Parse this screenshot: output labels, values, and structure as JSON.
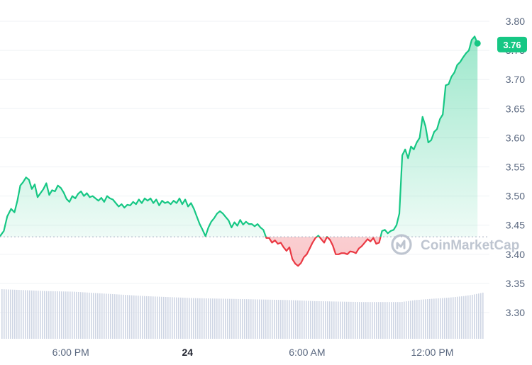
{
  "chart_data": {
    "type": "line",
    "title": "",
    "xlabel": "",
    "ylabel": "",
    "ylim": [
      3.25,
      3.82
    ],
    "grid": true,
    "baseline": 3.43,
    "current_price": 3.76,
    "current_price_label": "3.76",
    "y_ticks": [
      {
        "value": 3.8,
        "label": "3.80"
      },
      {
        "value": 3.75,
        "label": "3.75"
      },
      {
        "value": 3.7,
        "label": "3.70"
      },
      {
        "value": 3.65,
        "label": "3.65"
      },
      {
        "value": 3.6,
        "label": "3.60"
      },
      {
        "value": 3.55,
        "label": "3.55"
      },
      {
        "value": 3.5,
        "label": "3.50"
      },
      {
        "value": 3.45,
        "label": "3.45"
      },
      {
        "value": 3.4,
        "label": "3.40"
      },
      {
        "value": 3.35,
        "label": "3.35"
      },
      {
        "value": 3.3,
        "label": "3.30"
      }
    ],
    "x_ticks": [
      {
        "label": "6:00 PM",
        "t": 0.1467,
        "bold": false
      },
      {
        "label": "24",
        "t": 0.3887,
        "bold": true
      },
      {
        "label": "6:00 AM",
        "t": 0.6366,
        "bold": false
      },
      {
        "label": "12:00 PM",
        "t": 0.8962,
        "bold": false
      }
    ],
    "series": [
      {
        "points": [
          [
            0.0,
            3.431
          ],
          [
            0.008,
            3.44
          ],
          [
            0.015,
            3.465
          ],
          [
            0.023,
            3.478
          ],
          [
            0.03,
            3.472
          ],
          [
            0.036,
            3.492
          ],
          [
            0.042,
            3.518
          ],
          [
            0.048,
            3.524
          ],
          [
            0.054,
            3.532
          ],
          [
            0.06,
            3.528
          ],
          [
            0.066,
            3.512
          ],
          [
            0.072,
            3.52
          ],
          [
            0.078,
            3.498
          ],
          [
            0.084,
            3.505
          ],
          [
            0.09,
            3.512
          ],
          [
            0.096,
            3.522
          ],
          [
            0.102,
            3.502
          ],
          [
            0.108,
            3.51
          ],
          [
            0.114,
            3.508
          ],
          [
            0.12,
            3.518
          ],
          [
            0.126,
            3.514
          ],
          [
            0.132,
            3.506
          ],
          [
            0.138,
            3.495
          ],
          [
            0.144,
            3.49
          ],
          [
            0.15,
            3.5
          ],
          [
            0.156,
            3.496
          ],
          [
            0.162,
            3.504
          ],
          [
            0.168,
            3.508
          ],
          [
            0.174,
            3.5
          ],
          [
            0.18,
            3.505
          ],
          [
            0.186,
            3.498
          ],
          [
            0.192,
            3.5
          ],
          [
            0.198,
            3.496
          ],
          [
            0.204,
            3.492
          ],
          [
            0.21,
            3.497
          ],
          [
            0.216,
            3.49
          ],
          [
            0.222,
            3.5
          ],
          [
            0.228,
            3.496
          ],
          [
            0.234,
            3.494
          ],
          [
            0.24,
            3.488
          ],
          [
            0.246,
            3.482
          ],
          [
            0.252,
            3.486
          ],
          [
            0.258,
            3.48
          ],
          [
            0.264,
            3.485
          ],
          [
            0.27,
            3.484
          ],
          [
            0.276,
            3.49
          ],
          [
            0.282,
            3.486
          ],
          [
            0.288,
            3.494
          ],
          [
            0.294,
            3.488
          ],
          [
            0.3,
            3.496
          ],
          [
            0.306,
            3.492
          ],
          [
            0.312,
            3.496
          ],
          [
            0.318,
            3.488
          ],
          [
            0.324,
            3.494
          ],
          [
            0.33,
            3.484
          ],
          [
            0.336,
            3.492
          ],
          [
            0.342,
            3.488
          ],
          [
            0.348,
            3.49
          ],
          [
            0.354,
            3.486
          ],
          [
            0.36,
            3.492
          ],
          [
            0.366,
            3.488
          ],
          [
            0.372,
            3.496
          ],
          [
            0.378,
            3.486
          ],
          [
            0.384,
            3.494
          ],
          [
            0.39,
            3.482
          ],
          [
            0.396,
            3.488
          ],
          [
            0.402,
            3.478
          ],
          [
            0.408,
            3.465
          ],
          [
            0.414,
            3.452
          ],
          [
            0.42,
            3.442
          ],
          [
            0.426,
            3.431
          ],
          [
            0.432,
            3.446
          ],
          [
            0.438,
            3.456
          ],
          [
            0.444,
            3.462
          ],
          [
            0.45,
            3.47
          ],
          [
            0.456,
            3.474
          ],
          [
            0.462,
            3.47
          ],
          [
            0.468,
            3.464
          ],
          [
            0.474,
            3.458
          ],
          [
            0.48,
            3.446
          ],
          [
            0.486,
            3.455
          ],
          [
            0.492,
            3.449
          ],
          [
            0.498,
            3.459
          ],
          [
            0.504,
            3.451
          ],
          [
            0.51,
            3.456
          ],
          [
            0.516,
            3.452
          ],
          [
            0.522,
            3.452
          ],
          [
            0.528,
            3.448
          ],
          [
            0.534,
            3.452
          ],
          [
            0.54,
            3.446
          ],
          [
            0.546,
            3.442
          ],
          [
            0.552,
            3.428
          ],
          [
            0.558,
            3.428
          ],
          [
            0.564,
            3.42
          ],
          [
            0.57,
            3.424
          ],
          [
            0.576,
            3.418
          ],
          [
            0.582,
            3.42
          ],
          [
            0.588,
            3.412
          ],
          [
            0.594,
            3.406
          ],
          [
            0.6,
            3.412
          ],
          [
            0.606,
            3.392
          ],
          [
            0.612,
            3.384
          ],
          [
            0.618,
            3.38
          ],
          [
            0.624,
            3.385
          ],
          [
            0.63,
            3.395
          ],
          [
            0.636,
            3.4
          ],
          [
            0.642,
            3.41
          ],
          [
            0.648,
            3.42
          ],
          [
            0.654,
            3.428
          ],
          [
            0.66,
            3.432
          ],
          [
            0.666,
            3.426
          ],
          [
            0.672,
            3.42
          ],
          [
            0.678,
            3.43
          ],
          [
            0.684,
            3.425
          ],
          [
            0.69,
            3.415
          ],
          [
            0.696,
            3.4
          ],
          [
            0.702,
            3.4
          ],
          [
            0.708,
            3.402
          ],
          [
            0.714,
            3.402
          ],
          [
            0.72,
            3.4
          ],
          [
            0.726,
            3.405
          ],
          [
            0.732,
            3.404
          ],
          [
            0.738,
            3.402
          ],
          [
            0.744,
            3.41
          ],
          [
            0.75,
            3.414
          ],
          [
            0.756,
            3.42
          ],
          [
            0.762,
            3.426
          ],
          [
            0.768,
            3.422
          ],
          [
            0.774,
            3.428
          ],
          [
            0.78,
            3.418
          ],
          [
            0.786,
            3.42
          ],
          [
            0.792,
            3.44
          ],
          [
            0.798,
            3.442
          ],
          [
            0.804,
            3.436
          ],
          [
            0.81,
            3.44
          ],
          [
            0.816,
            3.442
          ],
          [
            0.822,
            3.45
          ],
          [
            0.828,
            3.47
          ],
          [
            0.834,
            3.57
          ],
          [
            0.84,
            3.58
          ],
          [
            0.846,
            3.565
          ],
          [
            0.852,
            3.585
          ],
          [
            0.858,
            3.58
          ],
          [
            0.864,
            3.592
          ],
          [
            0.87,
            3.6
          ],
          [
            0.876,
            3.636
          ],
          [
            0.882,
            3.62
          ],
          [
            0.888,
            3.592
          ],
          [
            0.894,
            3.596
          ],
          [
            0.9,
            3.61
          ],
          [
            0.906,
            3.615
          ],
          [
            0.912,
            3.632
          ],
          [
            0.918,
            3.64
          ],
          [
            0.924,
            3.69
          ],
          [
            0.93,
            3.692
          ],
          [
            0.936,
            3.705
          ],
          [
            0.942,
            3.712
          ],
          [
            0.948,
            3.725
          ],
          [
            0.954,
            3.73
          ],
          [
            0.96,
            3.738
          ],
          [
            0.966,
            3.745
          ],
          [
            0.972,
            3.75
          ],
          [
            0.978,
            3.768
          ],
          [
            0.984,
            3.774
          ],
          [
            0.99,
            3.762
          ]
        ]
      }
    ],
    "volume": [
      [
        0.0,
        1.0
      ],
      [
        0.05,
        0.98
      ],
      [
        0.1,
        0.96
      ],
      [
        0.15,
        0.95
      ],
      [
        0.2,
        0.92
      ],
      [
        0.25,
        0.89
      ],
      [
        0.3,
        0.86
      ],
      [
        0.35,
        0.84
      ],
      [
        0.4,
        0.82
      ],
      [
        0.45,
        0.81
      ],
      [
        0.5,
        0.8
      ],
      [
        0.55,
        0.79
      ],
      [
        0.6,
        0.78
      ],
      [
        0.65,
        0.76
      ],
      [
        0.7,
        0.75
      ],
      [
        0.75,
        0.74
      ],
      [
        0.8,
        0.74
      ],
      [
        0.83,
        0.74
      ],
      [
        0.86,
        0.78
      ],
      [
        0.9,
        0.81
      ],
      [
        0.93,
        0.83
      ],
      [
        0.96,
        0.86
      ],
      [
        0.98,
        0.89
      ],
      [
        1.0,
        0.93
      ]
    ],
    "colors": {
      "up": "#16c784",
      "down": "#ea3943",
      "grid": "#eff2f5",
      "baseline_dotted": "#a6b0c3",
      "volume": "#cfd6e4",
      "watermark": "#b8bfcc"
    }
  },
  "watermark": {
    "text": "CoinMarketCap",
    "logo_icon": "coinmarketcap-logo-icon"
  }
}
